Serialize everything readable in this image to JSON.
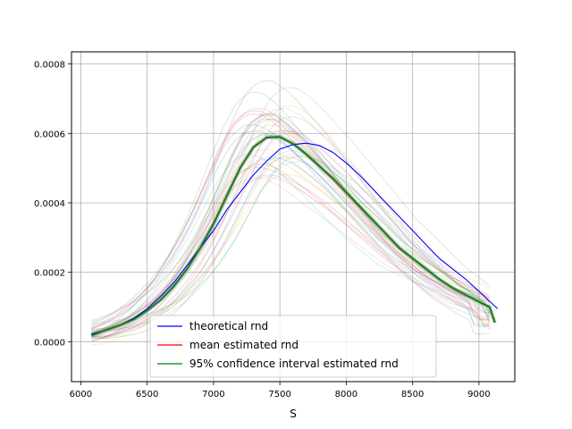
{
  "chart_data": {
    "type": "line",
    "title": "",
    "xlabel": "S",
    "ylabel": "",
    "xlim": [
      5930,
      9270
    ],
    "ylim": [
      -0.000115,
      0.000835
    ],
    "xticks": [
      6000,
      6500,
      7000,
      7500,
      8000,
      8500,
      9000
    ],
    "xtick_labels": [
      "6000",
      "6500",
      "7000",
      "7500",
      "8000",
      "8500",
      "9000"
    ],
    "yticks": [
      0.0,
      0.0002,
      0.0004,
      0.0006,
      0.0008
    ],
    "ytick_labels": [
      "0.0000",
      "0.0002",
      "0.0004",
      "0.0006",
      "0.0008"
    ],
    "grid": true,
    "legend_position": "lower-center",
    "series": [
      {
        "name": "theoretical rnd",
        "color": "#0000ff",
        "x": [
          6080,
          6200,
          6300,
          6400,
          6500,
          6600,
          6700,
          6800,
          6900,
          7000,
          7100,
          7200,
          7300,
          7400,
          7500,
          7600,
          7700,
          7800,
          7900,
          8000,
          8100,
          8200,
          8300,
          8400,
          8500,
          8600,
          8700,
          8800,
          8900,
          9000,
          9140
        ],
        "y": [
          2.2e-05,
          3.4e-05,
          4.8e-05,
          6.8e-05,
          9.5e-05,
          0.00013,
          0.00017,
          0.00022,
          0.00027,
          0.00032,
          0.00038,
          0.00043,
          0.00048,
          0.00052,
          0.000555,
          0.000568,
          0.000572,
          0.000565,
          0.000545,
          0.000515,
          0.00048,
          0.00044,
          0.0004,
          0.00036,
          0.00032,
          0.00028,
          0.00024,
          0.00021,
          0.00018,
          0.000145,
          9.5e-05
        ]
      },
      {
        "name": "mean estimated rnd",
        "color": "#ff0000",
        "x": [
          6080,
          6200,
          6300,
          6400,
          6500,
          6600,
          6700,
          6800,
          6900,
          7000,
          7100,
          7200,
          7300,
          7400,
          7500,
          7600,
          7700,
          7800,
          7900,
          8000,
          8100,
          8200,
          8300,
          8400,
          8500,
          8600,
          8700,
          8800,
          8900,
          9000,
          9080,
          9120
        ],
        "y": [
          1.8e-05,
          3.5e-05,
          4.8e-05,
          6.5e-05,
          9e-05,
          0.00012,
          0.00016,
          0.00021,
          0.00027,
          0.00034,
          0.00042,
          0.0005,
          0.00056,
          0.000588,
          0.00059,
          0.00057,
          0.00054,
          0.000505,
          0.00047,
          0.00043,
          0.00039,
          0.00035,
          0.00031,
          0.00027,
          0.00024,
          0.00021,
          0.00018,
          0.000155,
          0.000135,
          0.000115,
          0.0001,
          5.5e-05
        ]
      },
      {
        "name": "95% confidence interval estimated rnd",
        "color": "#008000",
        "x": [
          6080,
          6200,
          6300,
          6400,
          6500,
          6600,
          6700,
          6800,
          6900,
          7000,
          7100,
          7200,
          7300,
          7400,
          7500,
          7600,
          7700,
          7800,
          7900,
          8000,
          8100,
          8200,
          8300,
          8400,
          8500,
          8600,
          8700,
          8800,
          8900,
          9000,
          9080,
          9120
        ],
        "y": [
          1.8e-05,
          3.5e-05,
          4.8e-05,
          6.5e-05,
          9e-05,
          0.00012,
          0.00016,
          0.00021,
          0.00027,
          0.00034,
          0.00042,
          0.0005,
          0.00056,
          0.000588,
          0.00059,
          0.00057,
          0.00054,
          0.000505,
          0.00047,
          0.00043,
          0.00039,
          0.00035,
          0.00031,
          0.00027,
          0.00024,
          0.00021,
          0.00018,
          0.000155,
          0.000135,
          0.000115,
          0.0001,
          5.5e-05
        ]
      }
    ]
  }
}
